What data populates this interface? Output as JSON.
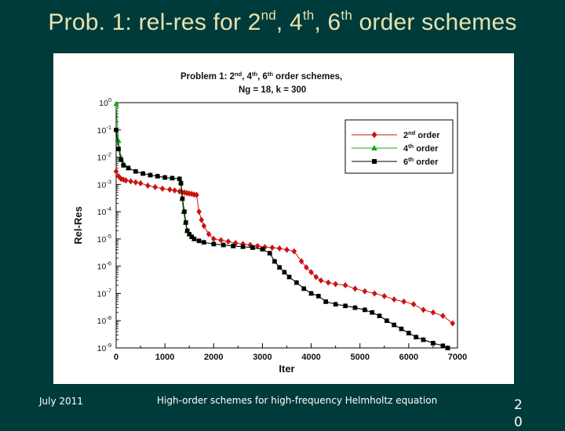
{
  "slide": {
    "title_parts": [
      "Prob. 1: rel-res for 2",
      "nd",
      ", 4",
      "th",
      ", 6",
      "th",
      " order schemes"
    ],
    "footer_date": "July 2011",
    "footer_center": "High-order schemes for high-frequency Helmholtz equation",
    "slide_number": "20"
  },
  "colors": {
    "background": "#003b3b",
    "title": "#e7e3b0",
    "order2": "#cc1111",
    "order4": "#11aa11",
    "order6": "#000000"
  },
  "chart_data": {
    "type": "line",
    "title_line1": [
      "Problem 1:  2",
      "nd",
      ", 4",
      "th",
      ", 6",
      "th",
      " order schemes,"
    ],
    "title_line2": "Ng = 18, k = 300",
    "xlabel": "Iter",
    "ylabel": "Rel-Res",
    "xlim": [
      0,
      7000
    ],
    "ylim_log10": [
      -9,
      0
    ],
    "yscale": "log",
    "xticks": [
      0,
      1000,
      2000,
      3000,
      4000,
      5000,
      6000,
      7000
    ],
    "xtick_labels": [
      "0",
      "1000",
      "2000",
      "3000",
      "4000",
      "5000",
      "6000",
      "7000"
    ],
    "yticks_exponents": [
      0,
      -1,
      -2,
      -3,
      -4,
      -5,
      -6,
      -7,
      -8,
      -9
    ],
    "ytick_base": "10",
    "ytick_exponent_labels": [
      "0",
      "-1",
      "-2",
      "-3",
      "-4",
      "-5",
      "-6",
      "-7",
      "-8",
      "-9"
    ],
    "grid": false,
    "legend_position": "top-right",
    "series": [
      {
        "name_parts": [
          "2",
          "nd",
          " order"
        ],
        "marker": "diamond",
        "x": [
          0,
          50,
          100,
          150,
          200,
          300,
          400,
          500,
          650,
          800,
          950,
          1100,
          1200,
          1300,
          1350,
          1400,
          1450,
          1500,
          1550,
          1600,
          1650,
          1700,
          1750,
          1800,
          1900,
          2000,
          2150,
          2300,
          2450,
          2600,
          2750,
          2900,
          3050,
          3200,
          3350,
          3500,
          3650,
          3800,
          3900,
          4000,
          4100,
          4200,
          4350,
          4500,
          4700,
          4900,
          5100,
          5300,
          5500,
          5700,
          5900,
          6100,
          6300,
          6500,
          6700,
          6900
        ],
        "y": [
          0.003,
          0.002,
          0.0016,
          0.0015,
          0.0014,
          0.0013,
          0.0012,
          0.0011,
          0.0009,
          0.0008,
          0.0007,
          0.00065,
          0.0006,
          0.00055,
          0.00052,
          0.0005,
          0.00048,
          0.00046,
          0.00045,
          0.00042,
          0.00041,
          0.0001,
          5e-05,
          3e-05,
          1.5e-05,
          1e-05,
          9e-06,
          8e-06,
          7e-06,
          6.5e-06,
          6e-06,
          5.5e-06,
          5e-06,
          4.8e-06,
          4.5e-06,
          4e-06,
          3.5e-06,
          1.5e-06,
          9e-07,
          6e-07,
          4e-07,
          3e-07,
          2.5e-07,
          2.2e-07,
          2e-07,
          1.5e-07,
          1.2e-07,
          1e-07,
          8e-08,
          6e-08,
          5e-08,
          4e-08,
          2.5e-08,
          2e-08,
          1.5e-08,
          8e-09
        ]
      },
      {
        "name_parts": [
          "4",
          "th",
          " order"
        ],
        "marker": "triangle",
        "x": [
          0,
          50,
          100,
          150,
          250,
          400,
          550,
          700,
          850,
          1000,
          1150,
          1300,
          1320,
          1350,
          1380,
          1420,
          1450,
          1500,
          1550,
          1600,
          1700,
          1800,
          2000,
          2200,
          2400,
          2600,
          2800,
          3000,
          3150,
          3250,
          3350,
          3450,
          3550,
          3700,
          3850,
          4000,
          4150,
          4300,
          4500,
          4700,
          4900,
          5100,
          5250,
          5400,
          5550,
          5700,
          5850,
          6000,
          6150,
          6300,
          6500,
          6700,
          6800
        ],
        "y": [
          0.9,
          0.04,
          0.01,
          0.006,
          0.004,
          0.003,
          0.0025,
          0.0022,
          0.002,
          0.0018,
          0.0017,
          0.0016,
          0.0012,
          0.0003,
          0.0001,
          4e-05,
          2e-05,
          1.5e-05,
          1.2e-05,
          1e-05,
          8.5e-06,
          7.5e-06,
          6.5e-06,
          6e-06,
          5.5e-06,
          5.2e-06,
          4.8e-06,
          4.2e-06,
          3e-06,
          1.5e-06,
          9e-07,
          6e-07,
          4e-07,
          2.5e-07,
          1.5e-07,
          1e-07,
          8e-08,
          5e-08,
          4e-08,
          3.5e-08,
          3e-08,
          2.5e-08,
          2e-08,
          1.5e-08,
          1e-08,
          7e-09,
          5e-09,
          3.5e-09,
          2.5e-09,
          2e-09,
          1.5e-09,
          1.2e-09,
          1e-09
        ]
      },
      {
        "name_parts": [
          "6",
          "th",
          " order"
        ],
        "marker": "square",
        "x": [
          0,
          50,
          100,
          150,
          250,
          400,
          550,
          700,
          850,
          1000,
          1150,
          1300,
          1330,
          1360,
          1400,
          1430,
          1460,
          1500,
          1550,
          1600,
          1700,
          1800,
          2000,
          2200,
          2400,
          2600,
          2800,
          3000,
          3150,
          3250,
          3350,
          3450,
          3550,
          3700,
          3850,
          4000,
          4150,
          4300,
          4500,
          4700,
          4900,
          5100,
          5250,
          5400,
          5550,
          5700,
          5850,
          6000,
          6150,
          6300,
          6500,
          6700,
          6800
        ],
        "y": [
          0.1,
          0.02,
          0.008,
          0.005,
          0.004,
          0.003,
          0.0025,
          0.0022,
          0.002,
          0.0018,
          0.0017,
          0.0016,
          0.0011,
          0.0003,
          0.0001,
          4e-05,
          2e-05,
          1.5e-05,
          1.2e-05,
          1e-05,
          8.5e-06,
          7.5e-06,
          6.5e-06,
          6e-06,
          5.5e-06,
          5.2e-06,
          4.8e-06,
          4.2e-06,
          3e-06,
          1.5e-06,
          9e-07,
          6e-07,
          4e-07,
          2.5e-07,
          1.5e-07,
          1e-07,
          8e-08,
          5e-08,
          4e-08,
          3.5e-08,
          3e-08,
          2.5e-08,
          2e-08,
          1.5e-08,
          1e-08,
          7e-09,
          5e-09,
          3.5e-09,
          2.5e-09,
          2e-09,
          1.5e-09,
          1.2e-09,
          1e-09
        ]
      }
    ]
  }
}
